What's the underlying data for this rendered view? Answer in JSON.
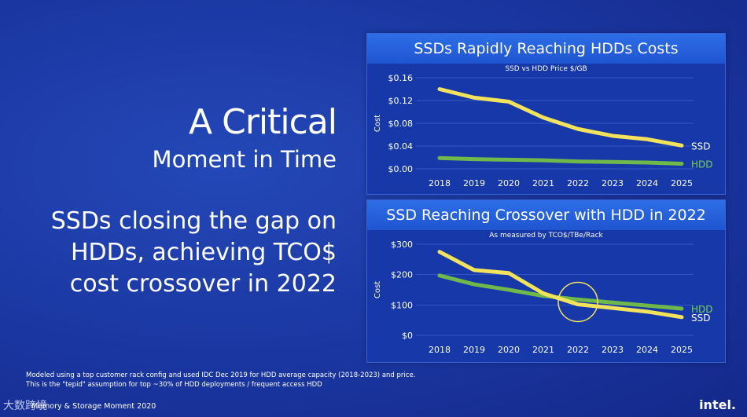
{
  "headline": {
    "line1": "A Critical",
    "line2": "Moment in Time"
  },
  "subheadline": [
    "SSDs closing the gap on",
    "HDDs, achieving TCO$",
    "cost crossover in 2022"
  ],
  "charts": [
    {
      "title": "SSDs Rapidly Reaching HDDs Costs",
      "subtitle": "SSD vs HDD Price $/GB"
    },
    {
      "title": "SSD Reaching Crossover with HDD in 2022",
      "subtitle": "As measured by TCO$/TBe/Rack"
    }
  ],
  "chart_data": [
    {
      "type": "line",
      "title": "SSDs Rapidly Reaching HDDs Costs",
      "subtitle": "SSD vs HDD Price $/GB",
      "ylabel": "Cost",
      "x": [
        "2018",
        "2019",
        "2020",
        "2021",
        "2022",
        "2023",
        "2024",
        "2025"
      ],
      "yticks": [
        "$0.00",
        "$0.04",
        "$0.08",
        "$0.12",
        "$0.16"
      ],
      "ylim": [
        0,
        0.16
      ],
      "series": [
        {
          "name": "SSD",
          "color": "#f2e25c",
          "values": [
            0.14,
            0.125,
            0.118,
            0.09,
            0.07,
            0.058,
            0.052,
            0.041
          ]
        },
        {
          "name": "HDD",
          "color": "#6fb84a",
          "values": [
            0.019,
            0.017,
            0.016,
            0.015,
            0.013,
            0.012,
            0.011,
            0.009
          ]
        }
      ]
    },
    {
      "type": "line",
      "title": "SSD Reaching Crossover with HDD in 2022",
      "subtitle": "As measured by TCO$/TBe/Rack",
      "ylabel": "Cost",
      "x": [
        "2018",
        "2019",
        "2020",
        "2021",
        "2022",
        "2023",
        "2024",
        "2025"
      ],
      "yticks": [
        "$0",
        "$100",
        "$200",
        "$300"
      ],
      "ylim": [
        0,
        300
      ],
      "series": [
        {
          "name": "HDD",
          "color": "#6fb84a",
          "values": [
            197,
            168,
            150,
            130,
            118,
            108,
            98,
            88
          ]
        },
        {
          "name": "SSD",
          "color": "#f2e25c",
          "values": [
            275,
            215,
            205,
            138,
            102,
            90,
            78,
            60
          ]
        }
      ],
      "annotation": "circle at 2022 crossover"
    }
  ],
  "footnote": [
    "Modeled using a top customer rack config and used IDC Dec 2019 for HDD average capacity (2018-2023) and price.",
    "This is the \"tepid\" assumption for top ~30% of HDD deployments / frequent access HDD"
  ],
  "footer": {
    "event": "Memory & Storage Moment 2020",
    "logo": "intel.",
    "watermark": "大数跨境"
  }
}
